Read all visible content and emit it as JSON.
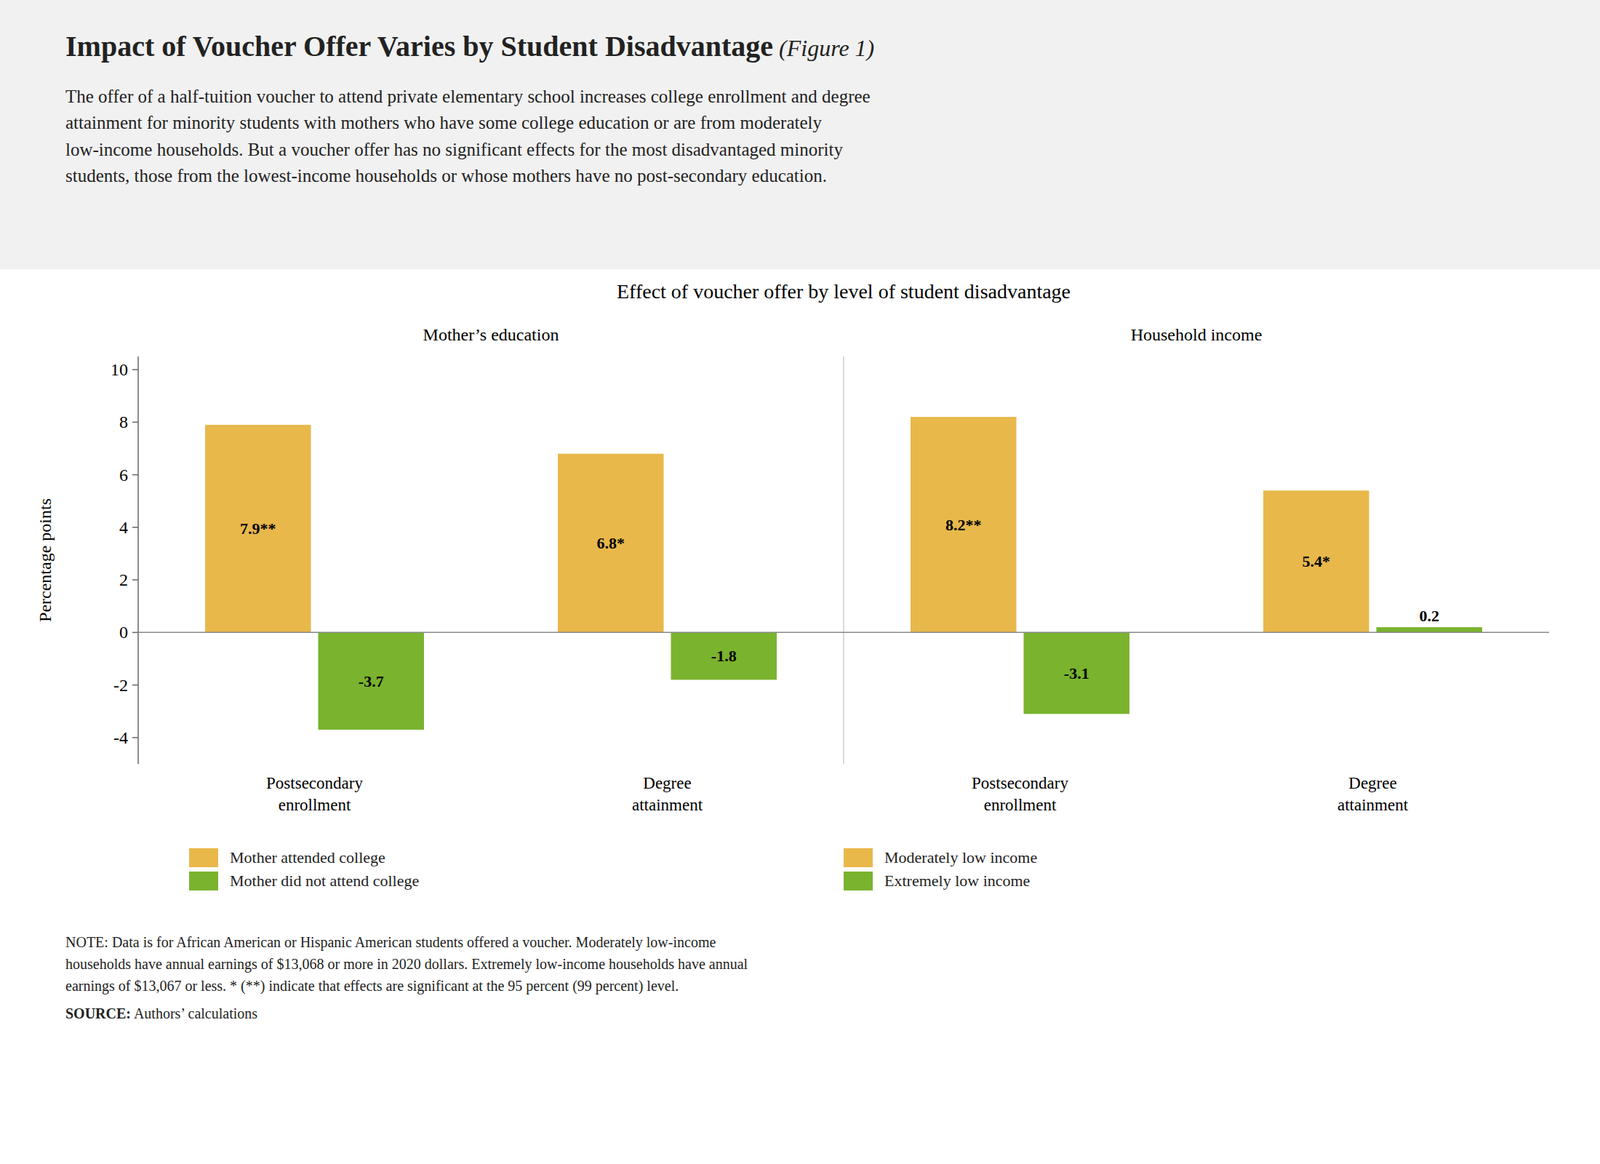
{
  "chart_data": {
    "type": "bar",
    "title": "Impact of Voucher Offer Varies by Student Disadvantage",
    "title_suffix": " (Figure 1)",
    "subtitle": [
      "The offer of a half-tuition voucher to attend private elementary school increases college enrollment and degree",
      "attainment for minority students with mothers who have some college education or are from moderately",
      "low-income households. But a voucher offer has no significant effects for the most disadvantaged minority",
      "students, those from the lowest-income households or whose mothers have no post-secondary education."
    ],
    "plot_title": "Effect of voucher offer by level of student disadvantage",
    "ylabel": "Percentage points",
    "categories": [
      "Postsecondary\nenrollment",
      "Degree\nattainment",
      "Postsecondary\nenrollment",
      "Degree\nattainment"
    ],
    "group_headers": [
      "Mother’s education",
      "Household income"
    ],
    "series": [
      {
        "name": "Mother attended college",
        "color": "#E8B84B",
        "values": [
          7.9,
          6.8,
          null,
          null
        ],
        "value_labels": [
          "7.9**",
          "6.8*",
          null,
          null
        ]
      },
      {
        "name": "Mother did not attend college",
        "color": "#7AB32E",
        "values": [
          -3.7,
          -1.8,
          null,
          null
        ]
      },
      {
        "name": "Moderately low income",
        "color": "#E8B84B",
        "values": [
          null,
          null,
          8.2,
          5.4
        ],
        "value_labels": [
          null,
          null,
          "8.2**",
          "5.4*"
        ]
      },
      {
        "name": "Extremely low income",
        "color": "#7AB32E",
        "values": [
          null,
          null,
          -3.1,
          0.2
        ]
      }
    ],
    "ylim": [
      -5,
      10.5
    ],
    "yticks": [
      -4,
      -2,
      0,
      2,
      4,
      6,
      8,
      10
    ],
    "grid": false,
    "legend": "bottom",
    "data_labels": true,
    "note": [
      "NOTE: Data is for African American or Hispanic American students offered a voucher. Moderately low-income",
      "households have annual earnings of $13,068 or more in 2020 dollars. Extremely low-income households have annual",
      "earnings of $13,067 or less. * (**) indicate that effects are significant at the 95 percent (99 percent) level."
    ],
    "source_label": "SOURCE:",
    "source": " Authors’ calculations"
  }
}
